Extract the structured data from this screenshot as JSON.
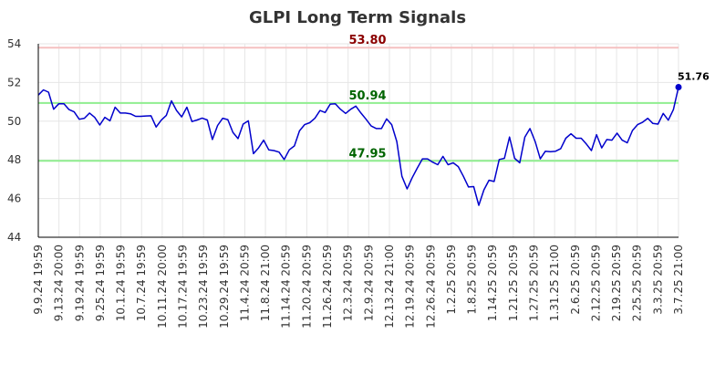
{
  "chart_data": {
    "type": "line",
    "title": "GLPI Long Term Signals",
    "xlabel": "",
    "ylabel": "",
    "ylim": [
      44,
      54
    ],
    "yticks": [
      "44",
      "46",
      "48",
      "50",
      "52",
      "54"
    ],
    "grid": true,
    "x_tick_labels": [
      "9.9.24 19:59",
      "9.13.24 20:00",
      "9.19.24 19:59",
      "9.25.24 19:59",
      "10.1.24 19:59",
      "10.7.24 19:59",
      "10.11.24 20:00",
      "10.17.24 19:59",
      "10.23.24 19:59",
      "10.29.24 19:59",
      "11.4.24 20:59",
      "11.8.24 21:00",
      "11.14.24 20:59",
      "11.20.24 20:59",
      "11.26.24 20:59",
      "12.3.24 20:59",
      "12.9.24 20:59",
      "12.13.24 21:00",
      "12.19.24 20:59",
      "12.26.24 20:59",
      "1.2.25 20:59",
      "1.8.25 20:59",
      "1.14.25 20:59",
      "1.21.25 20:59",
      "1.27.25 20:59",
      "1.31.25 21:00",
      "2.6.25 20:59",
      "2.12.25 20:59",
      "2.19.25 20:59",
      "2.25.25 20:59",
      "3.3.25 20:59",
      "3.7.25 21:00"
    ],
    "series": [
      {
        "color": "#0000cc",
        "values": [
          51.35,
          51.62,
          51.5,
          50.62,
          50.9,
          50.9,
          50.6,
          50.48,
          50.1,
          50.15,
          50.42,
          50.2,
          49.8,
          50.2,
          50.02,
          50.72,
          50.42,
          50.42,
          50.38,
          50.25,
          50.25,
          50.27,
          50.28,
          49.7,
          50.05,
          50.3,
          51.05,
          50.55,
          50.22,
          50.72,
          49.98,
          50.06,
          50.16,
          50.06,
          49.05,
          49.78,
          50.15,
          50.08,
          49.42,
          49.1,
          49.85,
          50.02,
          48.32,
          48.62,
          49.02,
          48.52,
          48.48,
          48.4,
          48.02,
          48.52,
          48.72,
          49.5,
          49.82,
          49.92,
          50.15,
          50.55,
          50.45,
          50.88,
          50.9,
          50.62,
          50.4,
          50.62,
          50.78,
          50.42,
          50.1,
          49.75,
          49.62,
          49.62,
          50.12,
          49.82,
          48.95,
          47.15,
          46.5,
          47.08,
          47.58,
          48.05,
          48.05,
          47.88,
          47.75,
          48.18,
          47.75,
          47.85,
          47.65,
          47.15,
          46.6,
          46.62,
          45.65,
          46.45,
          46.95,
          46.88,
          48.02,
          48.08,
          49.18,
          48.08,
          47.85,
          49.18,
          49.62,
          48.95,
          48.05,
          48.45,
          48.42,
          48.45,
          48.58,
          49.12,
          49.35,
          49.12,
          49.12,
          48.82,
          48.48,
          49.3,
          48.62,
          49.05,
          49.02,
          49.38,
          49.02,
          48.88,
          49.52,
          49.82,
          49.95,
          50.15,
          49.88,
          49.85,
          50.4,
          50.05,
          50.6,
          51.76
        ]
      }
    ],
    "levels": [
      {
        "value": 53.8,
        "label": "53.80",
        "line_color": "#f5c0c0",
        "text_color": "#8b0000"
      },
      {
        "value": 50.94,
        "label": "50.94",
        "line_color": "#90ee90",
        "text_color": "#006400"
      },
      {
        "value": 47.95,
        "label": "47.95",
        "line_color": "#90ee90",
        "text_color": "#006400"
      }
    ],
    "last_point_label": "51.76"
  }
}
